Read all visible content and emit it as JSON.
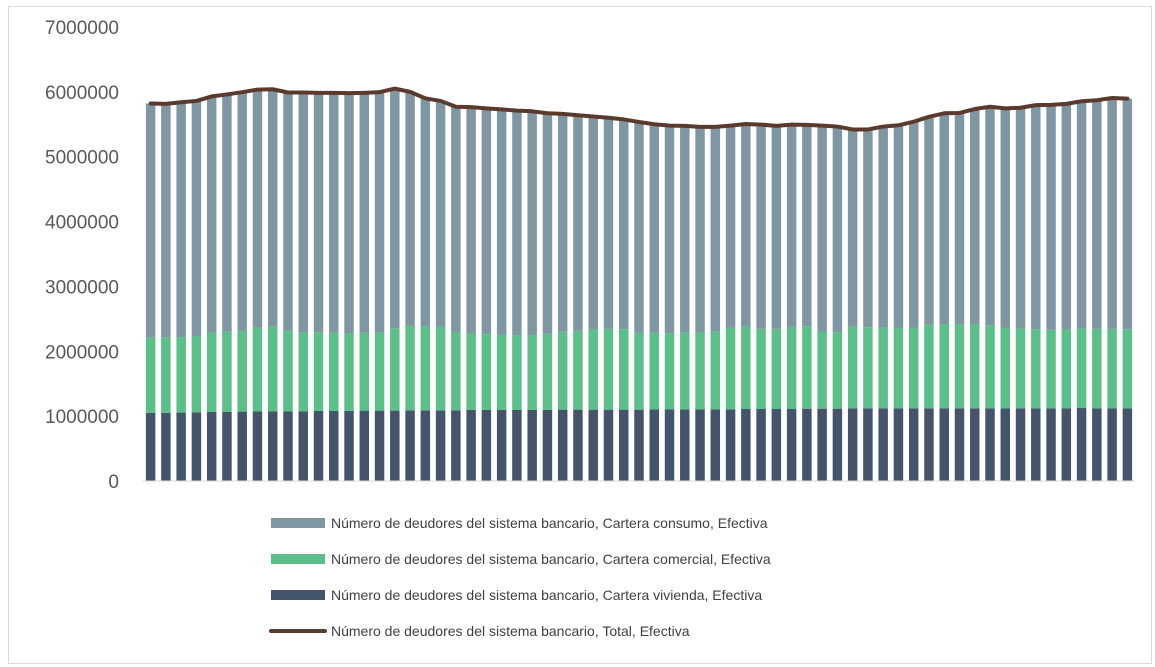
{
  "chart_data": {
    "type": "bar",
    "stacked": true,
    "ylim": [
      0,
      7000000
    ],
    "yticks": [
      0,
      1000000,
      2000000,
      3000000,
      4000000,
      5000000,
      6000000,
      7000000
    ],
    "ytick_labels": [
      "0",
      "1000000",
      "2000000",
      "3000000",
      "4000000",
      "5000000",
      "6000000",
      "7000000"
    ],
    "grid": false,
    "legend_position": "bottom",
    "series": [
      {
        "name": "Número de deudores del sistema bancario, Cartera vivienda, Efectiva",
        "color": "#44546a",
        "kind": "bar",
        "values": [
          1050000,
          1050000,
          1055000,
          1060000,
          1065000,
          1065000,
          1070000,
          1075000,
          1075000,
          1075000,
          1075000,
          1080000,
          1080000,
          1080000,
          1085000,
          1085000,
          1085000,
          1090000,
          1090000,
          1090000,
          1090000,
          1095000,
          1095000,
          1095000,
          1095000,
          1095000,
          1095000,
          1100000,
          1100000,
          1100000,
          1100000,
          1100000,
          1100000,
          1105000,
          1105000,
          1105000,
          1105000,
          1105000,
          1105000,
          1110000,
          1110000,
          1110000,
          1110000,
          1115000,
          1115000,
          1115000,
          1120000,
          1120000,
          1120000,
          1120000,
          1120000,
          1120000,
          1120000,
          1120000,
          1120000,
          1120000,
          1120000,
          1120000,
          1120000,
          1120000,
          1120000,
          1125000,
          1120000,
          1120000,
          1120000
        ]
      },
      {
        "name": "Número de deudores del sistema bancario, Cartera comercial, Efectiva",
        "color": "#5bbf8a",
        "kind": "bar",
        "values": [
          1160000,
          1165000,
          1165000,
          1175000,
          1225000,
          1235000,
          1250000,
          1290000,
          1305000,
          1245000,
          1220000,
          1215000,
          1205000,
          1195000,
          1200000,
          1200000,
          1270000,
          1300000,
          1290000,
          1285000,
          1200000,
          1180000,
          1170000,
          1165000,
          1155000,
          1155000,
          1180000,
          1200000,
          1215000,
          1235000,
          1245000,
          1240000,
          1185000,
          1180000,
          1175000,
          1180000,
          1185000,
          1195000,
          1255000,
          1270000,
          1235000,
          1235000,
          1265000,
          1270000,
          1190000,
          1180000,
          1260000,
          1250000,
          1245000,
          1240000,
          1240000,
          1295000,
          1300000,
          1300000,
          1295000,
          1275000,
          1240000,
          1230000,
          1220000,
          1210000,
          1215000,
          1225000,
          1225000,
          1225000,
          1220000
        ]
      },
      {
        "name": "Número de deudores del sistema bancario, Cartera consumo, Efectiva",
        "color": "#7f97a2",
        "kind": "bar",
        "values": [
          3610000,
          3600000,
          3620000,
          3625000,
          3640000,
          3660000,
          3675000,
          3670000,
          3660000,
          3670000,
          3695000,
          3690000,
          3700000,
          3705000,
          3700000,
          3710000,
          3695000,
          3610000,
          3520000,
          3485000,
          3480000,
          3490000,
          3480000,
          3470000,
          3460000,
          3450000,
          3395000,
          3360000,
          3325000,
          3285000,
          3255000,
          3235000,
          3250000,
          3215000,
          3200000,
          3190000,
          3170000,
          3160000,
          3120000,
          3125000,
          3150000,
          3130000,
          3120000,
          3105000,
          3175000,
          3170000,
          3040000,
          3050000,
          3100000,
          3125000,
          3180000,
          3200000,
          3250000,
          3255000,
          3320000,
          3375000,
          3385000,
          3405000,
          3455000,
          3470000,
          3480000,
          3505000,
          3525000,
          3560000,
          3555000
        ]
      },
      {
        "name": "Número de deudores del sistema bancario, Total, Efectiva",
        "color": "#5b3a2e",
        "kind": "line",
        "values": [
          5820000,
          5815000,
          5840000,
          5860000,
          5930000,
          5960000,
          5995000,
          6035000,
          6040000,
          5990000,
          5990000,
          5985000,
          5985000,
          5980000,
          5985000,
          5995000,
          6050000,
          6000000,
          5900000,
          5860000,
          5770000,
          5765000,
          5745000,
          5730000,
          5710000,
          5700000,
          5670000,
          5660000,
          5640000,
          5620000,
          5600000,
          5575000,
          5535000,
          5500000,
          5480000,
          5475000,
          5460000,
          5460000,
          5480000,
          5505000,
          5495000,
          5475000,
          5495000,
          5490000,
          5480000,
          5465000,
          5420000,
          5420000,
          5465000,
          5485000,
          5540000,
          5615000,
          5670000,
          5675000,
          5735000,
          5770000,
          5745000,
          5755000,
          5795000,
          5800000,
          5815000,
          5855000,
          5870000,
          5905000,
          5895000
        ]
      }
    ]
  }
}
